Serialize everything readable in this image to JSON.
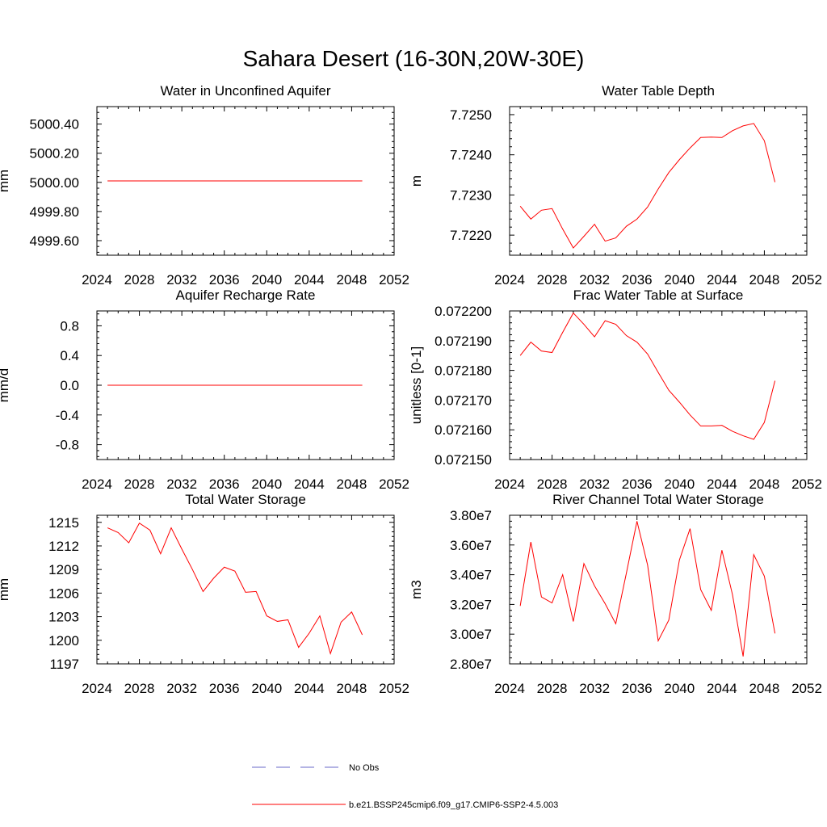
{
  "figure": {
    "title": "Sahara Desert (16-30N,20W-30E)",
    "colors": {
      "model": "#ff0000",
      "obs": "#6a6ac8",
      "axis": "#000000"
    }
  },
  "legend": {
    "obs_label": "No Obs",
    "model_label": "b.e21.BSSP245cmip6.f09_g17.CMIP6-SSP2-4.5.003"
  },
  "chart_data": [
    {
      "type": "line",
      "title": "Water in Unconfined Aquifer",
      "xlabel": "",
      "ylabel": "mm",
      "xlim": [
        2024,
        2052
      ],
      "ylim": [
        4999.5,
        5000.52
      ],
      "xticks": [
        2024,
        2028,
        2032,
        2036,
        2040,
        2044,
        2048,
        2052
      ],
      "xtick_labels": [
        "2024",
        "2028",
        "2032",
        "2036",
        "2040",
        "2044",
        "2048",
        "2052"
      ],
      "yticks": [
        4999.6,
        4999.8,
        5000.0,
        5000.2,
        5000.4
      ],
      "ytick_labels": [
        "4999.60",
        "4999.80",
        "5000.00",
        "5000.20",
        "5000.40"
      ],
      "series": [
        {
          "x": [
            2025,
            2026,
            2027,
            2028,
            2029,
            2030,
            2031,
            2032,
            2033,
            2034,
            2035,
            2036,
            2037,
            2038,
            2039,
            2040,
            2041,
            2042,
            2043,
            2044,
            2045,
            2046,
            2047,
            2048,
            2049
          ],
          "values": [
            5000.01,
            5000.01,
            5000.01,
            5000.01,
            5000.01,
            5000.01,
            5000.01,
            5000.01,
            5000.01,
            5000.01,
            5000.01,
            5000.01,
            5000.01,
            5000.01,
            5000.01,
            5000.01,
            5000.01,
            5000.01,
            5000.01,
            5000.01,
            5000.01,
            5000.01,
            5000.01,
            5000.01,
            5000.01
          ]
        }
      ]
    },
    {
      "type": "line",
      "title": "Water Table Depth",
      "xlabel": "",
      "ylabel": "m",
      "xlim": [
        2024,
        2052
      ],
      "ylim": [
        7.7215,
        7.7252
      ],
      "xticks": [
        2024,
        2028,
        2032,
        2036,
        2040,
        2044,
        2048,
        2052
      ],
      "xtick_labels": [
        "2024",
        "2028",
        "2032",
        "2036",
        "2040",
        "2044",
        "2048",
        "2052"
      ],
      "yticks": [
        7.722,
        7.723,
        7.724,
        7.725
      ],
      "ytick_labels": [
        "7.7220",
        "7.7230",
        "7.7240",
        "7.7250"
      ],
      "series": [
        {
          "x": [
            2025,
            2026,
            2027,
            2028,
            2029,
            2030,
            2031,
            2032,
            2033,
            2034,
            2035,
            2036,
            2037,
            2038,
            2039,
            2040,
            2041,
            2042,
            2043,
            2044,
            2045,
            2046,
            2047,
            2048,
            2049
          ],
          "values": [
            7.72272,
            7.7224,
            7.72262,
            7.72266,
            7.72215,
            7.72168,
            7.72197,
            7.72227,
            7.72185,
            7.72193,
            7.72222,
            7.7224,
            7.7227,
            7.72315,
            7.72356,
            7.72388,
            7.72417,
            7.72443,
            7.72444,
            7.72443,
            7.7246,
            7.72472,
            7.72478,
            7.72435,
            7.72332
          ]
        }
      ]
    },
    {
      "type": "line",
      "title": "Aquifer Recharge Rate",
      "xlabel": "",
      "ylabel": "mm/d",
      "xlim": [
        2024,
        2052
      ],
      "ylim": [
        -1.0,
        1.0
      ],
      "xticks": [
        2024,
        2028,
        2032,
        2036,
        2040,
        2044,
        2048,
        2052
      ],
      "xtick_labels": [
        "2024",
        "2028",
        "2032",
        "2036",
        "2040",
        "2044",
        "2048",
        "2052"
      ],
      "yticks": [
        -0.8,
        -0.4,
        0.0,
        0.4,
        0.8
      ],
      "ytick_labels": [
        "-0.8",
        "-0.4",
        "0.0",
        "0.4",
        "0.8"
      ],
      "series": [
        {
          "x": [
            2025,
            2026,
            2027,
            2028,
            2029,
            2030,
            2031,
            2032,
            2033,
            2034,
            2035,
            2036,
            2037,
            2038,
            2039,
            2040,
            2041,
            2042,
            2043,
            2044,
            2045,
            2046,
            2047,
            2048,
            2049
          ],
          "values": [
            0,
            0,
            0,
            0,
            0,
            0,
            0,
            0,
            0,
            0,
            0,
            0,
            0,
            0,
            0,
            0,
            0,
            0,
            0,
            0,
            0,
            0,
            0,
            0,
            0
          ]
        }
      ]
    },
    {
      "type": "line",
      "title": "Frac Water Table at Surface",
      "xlabel": "",
      "ylabel": "unitless [0-1]",
      "xlim": [
        2024,
        2052
      ],
      "ylim": [
        0.07215,
        0.0722
      ],
      "xticks": [
        2024,
        2028,
        2032,
        2036,
        2040,
        2044,
        2048,
        2052
      ],
      "xtick_labels": [
        "2024",
        "2028",
        "2032",
        "2036",
        "2040",
        "2044",
        "2048",
        "2052"
      ],
      "yticks": [
        0.07215,
        0.07216,
        0.07217,
        0.07218,
        0.07219,
        0.0722
      ],
      "ytick_labels": [
        "0.072150",
        "0.072160",
        "0.072170",
        "0.072180",
        "0.072190",
        "0.072200"
      ],
      "series": [
        {
          "x": [
            2025,
            2026,
            2027,
            2028,
            2029,
            2030,
            2031,
            2032,
            2033,
            2034,
            2035,
            2036,
            2037,
            2038,
            2039,
            2040,
            2041,
            2042,
            2043,
            2044,
            2045,
            2046,
            2047,
            2048,
            2049
          ],
          "values": [
            0.072185,
            0.0721895,
            0.0721865,
            0.072186,
            0.0721928,
            0.0721993,
            0.0721955,
            0.0721913,
            0.0721967,
            0.0721955,
            0.0721917,
            0.0721895,
            0.0721855,
            0.0721793,
            0.0721733,
            0.0721693,
            0.072165,
            0.0721613,
            0.0721613,
            0.0721615,
            0.0721595,
            0.072158,
            0.0721568,
            0.0721625,
            0.0721765
          ]
        }
      ]
    },
    {
      "type": "line",
      "title": "Total Water Storage",
      "xlabel": "",
      "ylabel": "mm",
      "xlim": [
        2024,
        2052
      ],
      "ylim": [
        1197,
        1215.9
      ],
      "xticks": [
        2024,
        2028,
        2032,
        2036,
        2040,
        2044,
        2048,
        2052
      ],
      "xtick_labels": [
        "2024",
        "2028",
        "2032",
        "2036",
        "2040",
        "2044",
        "2048",
        "2052"
      ],
      "yticks": [
        1197,
        1200,
        1203,
        1206,
        1209,
        1212,
        1215
      ],
      "ytick_labels": [
        "1197",
        "1200",
        "1203",
        "1206",
        "1209",
        "1212",
        "1215"
      ],
      "series": [
        {
          "x": [
            2025,
            2026,
            2027,
            2028,
            2029,
            2030,
            2031,
            2032,
            2033,
            2034,
            2035,
            2036,
            2037,
            2038,
            2039,
            2040,
            2041,
            2042,
            2043,
            2044,
            2045,
            2046,
            2047,
            2048,
            2049
          ],
          "values": [
            1214.3,
            1213.7,
            1212.4,
            1214.9,
            1214.0,
            1211.0,
            1214.3,
            1211.6,
            1209.0,
            1206.2,
            1207.9,
            1209.3,
            1208.8,
            1206.1,
            1206.2,
            1203.1,
            1202.4,
            1202.6,
            1199.1,
            1200.9,
            1203.1,
            1198.3,
            1202.3,
            1203.6,
            1200.7
          ]
        }
      ]
    },
    {
      "type": "line",
      "title": "River Channel Total Water Storage",
      "xlabel": "",
      "ylabel": "m3",
      "xlim": [
        2024,
        2052
      ],
      "ylim": [
        28000000,
        38000000
      ],
      "xticks": [
        2024,
        2028,
        2032,
        2036,
        2040,
        2044,
        2048,
        2052
      ],
      "xtick_labels": [
        "2024",
        "2028",
        "2032",
        "2036",
        "2040",
        "2044",
        "2048",
        "2052"
      ],
      "yticks": [
        28000000,
        30000000,
        32000000,
        34000000,
        36000000,
        38000000
      ],
      "ytick_labels": [
        "2.80e7",
        "3.00e7",
        "3.20e7",
        "3.40e7",
        "3.60e7",
        "3.80e7"
      ],
      "series": [
        {
          "x": [
            2025,
            2026,
            2027,
            2028,
            2029,
            2030,
            2031,
            2032,
            2033,
            2034,
            2035,
            2036,
            2037,
            2038,
            2039,
            2040,
            2041,
            2042,
            2043,
            2044,
            2045,
            2046,
            2047,
            2048,
            2049
          ],
          "values": [
            31900000,
            36200000,
            32500000,
            32100000,
            34000000,
            30850000,
            34750000,
            33250000,
            32050000,
            30700000,
            34100000,
            37600000,
            34650000,
            29550000,
            30950000,
            35000000,
            37100000,
            33000000,
            31600000,
            35650000,
            32650000,
            28500000,
            35350000,
            33900000,
            30050000
          ]
        }
      ]
    }
  ]
}
